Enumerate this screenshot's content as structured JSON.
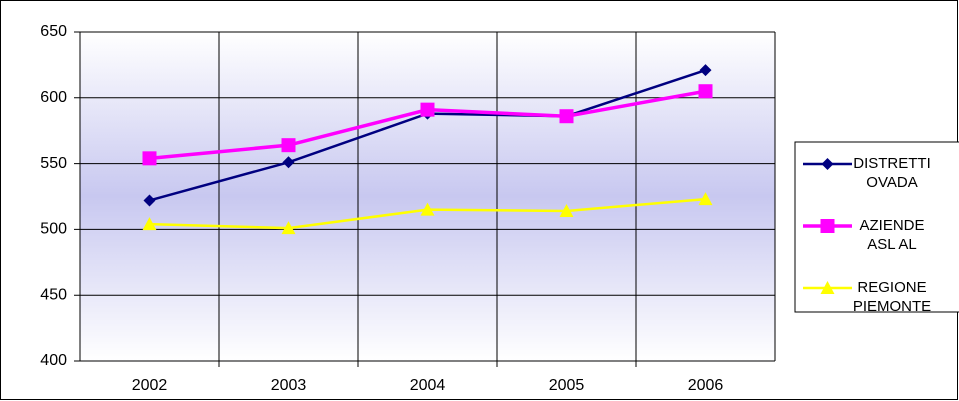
{
  "chart_data": {
    "type": "line",
    "categories": [
      "2002",
      "2003",
      "2004",
      "2005",
      "2006"
    ],
    "series": [
      {
        "name": "DISTRETTI OVADA",
        "color": "#000080",
        "marker": "diamond",
        "values": [
          522,
          551,
          588,
          586,
          621
        ]
      },
      {
        "name": "AZIENDE ASL AL",
        "color": "#ff00ff",
        "marker": "square",
        "values": [
          554,
          564,
          591,
          586,
          605
        ]
      },
      {
        "name": "REGIONE PIEMONTE",
        "color": "#ffff00",
        "marker": "triangle",
        "values": [
          504,
          501,
          515,
          514,
          523
        ]
      }
    ],
    "ylim": [
      400,
      650
    ],
    "yticks": [
      400,
      450,
      500,
      550,
      600,
      650
    ],
    "grid": true,
    "legend": "right"
  }
}
